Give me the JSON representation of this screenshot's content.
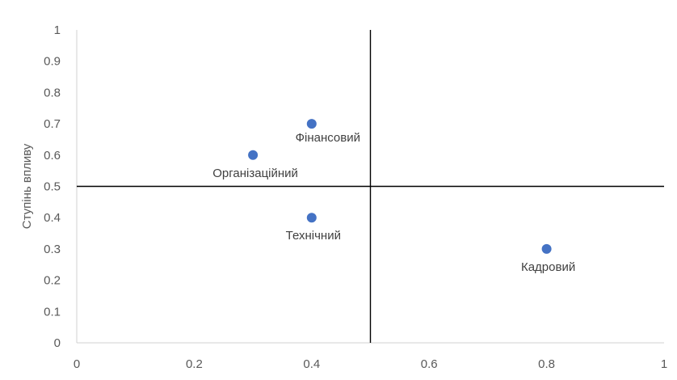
{
  "chart_data": {
    "type": "scatter",
    "title": "",
    "xlabel": "",
    "ylabel": "Ступінь впливу",
    "xlim": [
      0,
      1
    ],
    "ylim": [
      0,
      1
    ],
    "x_ticks": [
      "0",
      "0.2",
      "0.4",
      "0.6",
      "0.8",
      "1"
    ],
    "y_ticks": [
      "0",
      "0.1",
      "0.2",
      "0.3",
      "0.4",
      "0.5",
      "0.6",
      "0.7",
      "0.8",
      "0.9",
      "1"
    ],
    "quadrant_lines": {
      "x": 0.5,
      "y": 0.5
    },
    "grid": false,
    "legend": "none",
    "marker_color": "#4472C4",
    "points": [
      {
        "label": "Фінансовий",
        "x": 0.4,
        "y": 0.7,
        "label_pos": "below-right"
      },
      {
        "label": "Організаційний",
        "x": 0.3,
        "y": 0.6,
        "label_pos": "below-left"
      },
      {
        "label": "Технічний",
        "x": 0.4,
        "y": 0.4,
        "label_pos": "below"
      },
      {
        "label": "Кадровий",
        "x": 0.8,
        "y": 0.3,
        "label_pos": "below"
      }
    ]
  }
}
